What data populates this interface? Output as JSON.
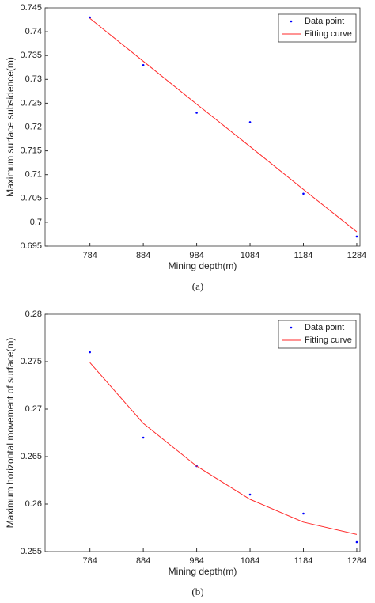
{
  "chart_data": [
    {
      "type": "scatter",
      "caption": "(a)",
      "xlabel": "Mining depth(m)",
      "ylabel": "Maximum surface subsidence(m)",
      "x": [
        784,
        884,
        984,
        1084,
        1184,
        1284
      ],
      "xlim": [
        700,
        1290
      ],
      "xticks": [
        784,
        884,
        984,
        1084,
        1184,
        1284
      ],
      "ylim": [
        0.695,
        0.745
      ],
      "yticks": [
        0.695,
        0.7,
        0.705,
        0.71,
        0.715,
        0.72,
        0.725,
        0.73,
        0.735,
        0.74,
        0.745
      ],
      "legend": "upper right",
      "series": [
        {
          "name": "Data point",
          "mode": "markers",
          "color": "#0000ff",
          "values": [
            0.743,
            0.733,
            0.723,
            0.721,
            0.706,
            0.697
          ]
        },
        {
          "name": "Fitting curve",
          "mode": "line",
          "color": "#ff2a2a",
          "values": [
            0.7428,
            0.7338,
            0.7248,
            0.7159,
            0.7069,
            0.698
          ]
        }
      ]
    },
    {
      "type": "scatter",
      "caption": "(b)",
      "xlabel": "Mining depth(m)",
      "ylabel": "Maximum horizontal movement of surface(m)",
      "x": [
        784,
        884,
        984,
        1084,
        1184,
        1284
      ],
      "xlim": [
        700,
        1290
      ],
      "xticks": [
        784,
        884,
        984,
        1084,
        1184,
        1284
      ],
      "ylim": [
        0.255,
        0.28
      ],
      "yticks": [
        0.255,
        0.26,
        0.265,
        0.27,
        0.275,
        0.28
      ],
      "legend": "upper right",
      "series": [
        {
          "name": "Data point",
          "mode": "markers",
          "color": "#0000ff",
          "values": [
            0.276,
            0.267,
            0.264,
            0.261,
            0.259,
            0.256
          ]
        },
        {
          "name": "Fitting curve",
          "mode": "line",
          "color": "#ff2a2a",
          "values": [
            0.2749,
            0.2685,
            0.264,
            0.2605,
            0.2581,
            0.2568
          ]
        }
      ]
    }
  ]
}
